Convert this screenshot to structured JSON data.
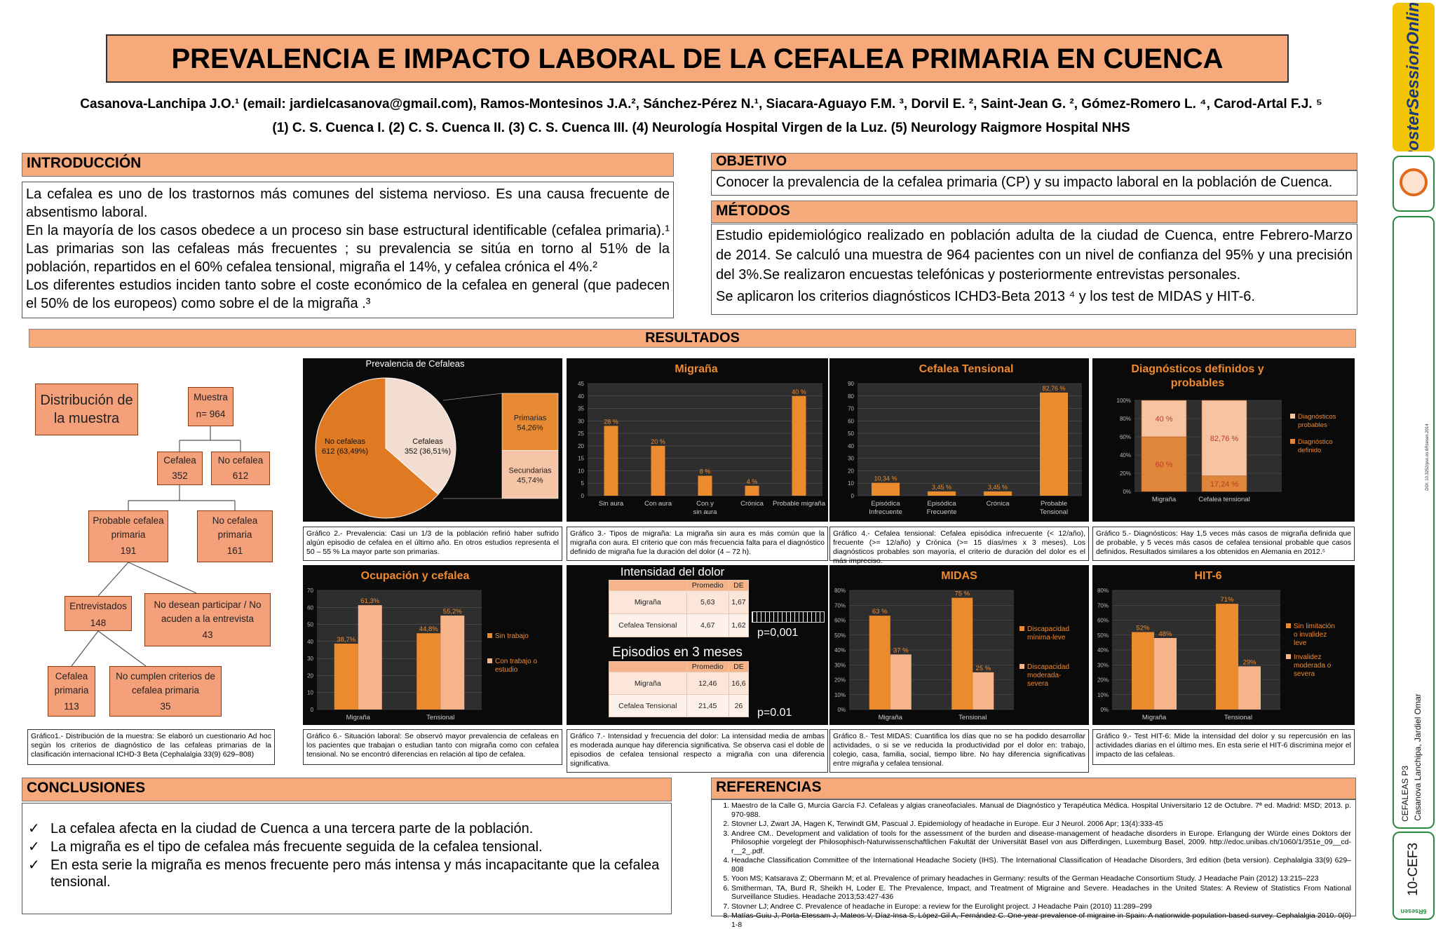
{
  "title": "PREVALENCIA E IMPACTO LABORAL DE LA CEFALEA PRIMARIA EN CUENCA",
  "authors": "Casanova-Lanchipa J.O.¹ (email: jardielcasanova@gmail.com), Ramos-Montesinos J.A.², Sánchez-Pérez N.¹, Siacara-Aguayo F.M. ³, Dorvil E. ², Saint-Jean G. ², Gómez-Romero L. ⁴, Carod-Artal F.J. ⁵",
  "affiliations": "(1) C. S. Cuenca I. (2) C. S. Cuenca II. (3) C. S. Cuenca III. (4) Neurología Hospital Virgen de la Luz.  (5)  Neurology Raigmore Hospital NHS",
  "intro": {
    "heading": "INTRODUCCIÓN",
    "p1": "La cefalea es uno de los trastornos más comunes del sistema nervioso. Es una causa frecuente de absentismo laboral.",
    "p2": "En la mayoría de los casos obedece a un proceso sin base estructural identificable (cefalea primaria).¹ Las primarias son las  cefaleas más frecuentes ; su prevalencia se sitúa en  torno al 51% de la población, repartidos en  el 60%  cefalea tensional, migraña el 14%, y cefalea crónica el 4%.²",
    "p3": "Los  diferentes estudios inciden tanto  sobre el coste económico de la cefalea en general (que padecen el 50% de los europeos)  como sobre el de la migraña .³"
  },
  "objetivo": {
    "heading": "OBJETIVO",
    "text": "Conocer la prevalencia de la cefalea primaria (CP) y su impacto laboral en la población de Cuenca."
  },
  "metodos": {
    "heading": "MÉTODOS",
    "p1": "Estudio epidemiológico realizado en población adulta de la ciudad de Cuenca, entre Febrero-Marzo de 2014. Se calculó una muestra de 964 pacientes con un nivel de confianza del 95% y una precisión del 3%.Se realizaron encuestas telefónicas y posteriormente entrevistas personales.",
    "p2": "Se aplicaron los criterios diagnósticos ICHD3-Beta 2013 ⁴ y los test de MIDAS y HIT-6."
  },
  "resultados": {
    "heading": "RESULTADOS"
  },
  "tree": {
    "title": "Distribución de la muestra",
    "nodes": {
      "muestra": [
        "Muestra",
        "n= 964"
      ],
      "cefalea": [
        "Cefalea",
        "352"
      ],
      "nocefalea": [
        "No cefalea",
        "612"
      ],
      "probable": [
        "Probable cefalea",
        "primaria",
        "191"
      ],
      "noprimaria": [
        "No cefalea",
        "primaria",
        "161"
      ],
      "entrevistados": [
        "Entrevistados",
        "148"
      ],
      "nodesean": [
        "No desean participar / No",
        "acuden a la entrevista",
        "43"
      ],
      "cefaleaprimaria": [
        "Cefalea",
        "primaria",
        "113"
      ],
      "nocumplen": [
        "No cumplen criterios de",
        "cefalea primaria",
        "35"
      ]
    },
    "caption": "Gráfico1.- Distribución de la muestra: Se elaboró un cuestionario Ad hoc según los criterios de diagnóstico de las cefaleas primarias de la clasificación internacional ICHD-3 Beta (Cephalalgia 33(9) 629–808)"
  },
  "chart_data": [
    {
      "type": "pie",
      "title": "Prevalencia de Cefaleas",
      "slices": [
        {
          "label": "No cefaleas",
          "value_label": "612 (63,49%)",
          "value": 63.49,
          "color": "#e07a22"
        },
        {
          "label": "Cefaleas",
          "value_label": "352 (36,51%)",
          "value": 36.51,
          "color": "#f3dcd0"
        }
      ],
      "stack": [
        {
          "label": "Primarias",
          "value_label": "54,26%",
          "value": 54.26,
          "color": "#e88a34"
        },
        {
          "label": "Secundarias",
          "value_label": "45,74%",
          "value": 45.74,
          "color": "#f6c4a6"
        }
      ]
    },
    {
      "type": "bar",
      "title": "Migraña",
      "categories": [
        "Sin aura",
        "Con aura",
        "Con y sin aura",
        "Crónica",
        "Probable migraña"
      ],
      "values": [
        28,
        20,
        8,
        4,
        40
      ],
      "labels": [
        "28 %",
        "20 %",
        "8 %",
        "4 %",
        "40 %"
      ],
      "ylim": [
        0,
        45
      ],
      "yticks": [
        0,
        5,
        10,
        15,
        20,
        25,
        30,
        35,
        40,
        45
      ]
    },
    {
      "type": "bar",
      "title": "Cefalea Tensional",
      "categories": [
        "Episódica Infrecuente",
        "Episódica Frecuente",
        "Crónica",
        "Probable Tensional"
      ],
      "values": [
        10.34,
        3.45,
        3.45,
        82.76
      ],
      "labels": [
        "10,34 %",
        "3,45 %",
        "3,45 %",
        "82,76 %"
      ],
      "ylim": [
        0,
        90
      ],
      "yticks": [
        0,
        10,
        20,
        30,
        40,
        50,
        60,
        70,
        80,
        90
      ]
    },
    {
      "type": "bar",
      "stacked": true,
      "title": "Diagnósticos definidos y probables",
      "categories": [
        "Migraña",
        "Cefalea tensional"
      ],
      "series": [
        {
          "name": "Diagnóstico definido",
          "values": [
            60,
            17.24
          ],
          "labels": [
            "60 %",
            "17,24 %"
          ],
          "color": "#e0863a"
        },
        {
          "name": "Diagnósticos probables",
          "values": [
            40,
            82.76
          ],
          "labels": [
            "40 %",
            "82,76 %"
          ],
          "color": "#f6c3a3"
        }
      ],
      "ylim": [
        0,
        100
      ],
      "yticks": [
        "0%",
        "20%",
        "40%",
        "60%",
        "80%",
        "100%"
      ]
    },
    {
      "type": "bar",
      "title": "Ocupación y cefalea",
      "categories": [
        "Migraña",
        "Tensional"
      ],
      "series": [
        {
          "name": "Sin trabajo",
          "values": [
            38.7,
            44.8
          ],
          "labels": [
            "38,7%",
            "44,8%"
          ],
          "color": "#ec8a2e"
        },
        {
          "name": "Con trabajo o estudio",
          "values": [
            61.3,
            55.2
          ],
          "labels": [
            "61,3%",
            "55,2%"
          ],
          "color": "#f6b48a"
        }
      ],
      "ylim": [
        0,
        70
      ],
      "yticks": [
        0,
        10,
        20,
        30,
        40,
        50,
        60,
        70
      ]
    },
    {
      "type": "table",
      "title": "Intensidad del dolor",
      "columns": [
        "",
        "Promedio",
        "DE"
      ],
      "rows": [
        [
          "Migraña",
          "5,63",
          "1,67"
        ],
        [
          "Cefalea Tensional",
          "4,67",
          "1,62"
        ]
      ],
      "pvalue": "p=0,001"
    },
    {
      "type": "table",
      "title": "Episodios en 3 meses",
      "columns": [
        "",
        "Promedio",
        "DE"
      ],
      "rows": [
        [
          "Migraña",
          "12,46",
          "16,6"
        ],
        [
          "Cefalea Tensional",
          "21,45",
          "26"
        ]
      ],
      "pvalue": "p=0.01"
    },
    {
      "type": "bar",
      "title": "MIDAS",
      "categories": [
        "Migraña",
        "Tensional"
      ],
      "series": [
        {
          "name": "Discapacidad mínima-leve",
          "values": [
            63,
            75
          ],
          "labels": [
            "63 %",
            "75 %"
          ],
          "color": "#ec8a2e"
        },
        {
          "name": "Discapacidad moderada-severa",
          "values": [
            37,
            25
          ],
          "labels": [
            "37 %",
            "25 %"
          ],
          "color": "#f6b48a"
        }
      ],
      "ylim": [
        0,
        80
      ],
      "yticks": [
        "0%",
        "10%",
        "20%",
        "30%",
        "40%",
        "50%",
        "60%",
        "70%",
        "80%"
      ]
    },
    {
      "type": "bar",
      "title": "HIT-6",
      "categories": [
        "Migraña",
        "Tensional"
      ],
      "series": [
        {
          "name": "Sin limitación o invalidez leve",
          "values": [
            52,
            71
          ],
          "labels": [
            "52%",
            "71%"
          ],
          "color": "#ec8a2e"
        },
        {
          "name": "Invalidez moderada o severa",
          "values": [
            48,
            29
          ],
          "labels": [
            "48%",
            "29%"
          ],
          "color": "#f6b48a"
        }
      ],
      "ylim": [
        0,
        80
      ],
      "yticks": [
        "0%",
        "10%",
        "20%",
        "30%",
        "40%",
        "50%",
        "60%",
        "70%",
        "80%"
      ]
    }
  ],
  "captions": {
    "g2": "Gráfico 2.- Prevalencia: Casi un  1/3 de la población refirió haber sufrido algún episodio de cefalea en  el último año. En otros estudios representa el 50 – 55 % La mayor parte son primarias.",
    "g3": "Gráfico 3.- Tipos de migraña: La migraña sin aura es más común que la migraña con aura. El criterio que con más frecuencia falta para el diagnóstico definido de migraña fue la duración del dolor (4 – 72 h).",
    "g4": "Gráfico 4.- Cefalea tensional: Cefalea episódica infrecuente (< 12/año), frecuente (>= 12/año) y Crónica (>= 15 días/mes x 3 meses). Los diagnósticos probables son mayoría, el criterio de duración del dolor es el más impreciso.",
    "g5": "Gráfico 5.- Diagnósticos: Hay 1,5 veces más casos de migraña definida que de probable, y 5 veces más casos de cefalea tensional probable que casos definidos. Resultados similares a los obtenidos en Alemania en 2012.⁵",
    "g6": "Gráfico 6.- Situación laboral: Se observó mayor prevalencia de cefaleas en los pacientes que trabajan o estudian tanto con migraña como con cefalea tensional. No se encontró diferencias en relación al tipo de cefalea.",
    "g7": "Gráfico 7.- Intensidad y frecuencia del dolor: La intensidad media de ambas es moderada aunque hay diferencia significativa. Se observa casi el doble de episodios de cefalea tensional respecto a migraña con una diferencia significativa.",
    "g8": "Gráfico 8.- Test MIDAS: Cuantifica los días que no se ha podido desarrollar actividades, o si se ve reducida la productividad por el dolor en: trabajo, colegio, casa, familia, social, tiempo libre. No hay diferencia significativas entre migraña y cefalea tensional.",
    "g9": "Gráfico 9.- Test HIT-6: Mide la intensidad del dolor y su repercusión en las actividades diarias en el último mes. En esta serie el HIT-6 discrimina mejor el impacto de las cefaleas."
  },
  "conclusiones": {
    "heading": "CONCLUSIONES",
    "items": [
      "La cefalea afecta en la ciudad de Cuenca a una tercera parte de la población.",
      "La migraña es el tipo de cefalea más frecuente seguida de la cefalea tensional.",
      "En esta serie la migraña es menos frecuente pero más intensa y más incapacitante que la cefalea  tensional."
    ]
  },
  "referencias": {
    "heading": "REFERENCIAS",
    "items": [
      "Maestro de la Calle G, Murcia García FJ. Cefaleas y algias craneofaciales. Manual de Diagnóstico y Terapéutica Médica. Hospital Universitario 12 de Octubre. 7ª ed. Madrid: MSD; 2013. p. 970-988.",
      "Stovner LJ, Zwart JA, Hagen K, Terwindt GM, Pascual J. Epidemiology of headache in Europe. Eur J Neurol. 2006 Apr; 13(4):333-45",
      "Andree CM.. Development and validation of tools for the assessment of the burden and disease-management of headache disorders in Europe. Erlangung der Würde eines Doktors der Philosophie vorgelegt der Philosophisch-Naturwissenschaftlichen Fakultät der Universität Basel von aus Differdingen, Luxemburg Basel, 2009. http://edoc.unibas.ch/1060/1/351e_09__cd-r__2_.pdf.",
      "Headache Classification Committee of the International Headache Society (IHS). The International Classification of Headache Disorders, 3rd edition (beta version). Cephalalgia 33(9) 629–808",
      "Yoon MS; Katsarava Z; Obermann M; et al. Prevalence of primary headaches in Germany: results of the German Headache Consortium Study. J Headache Pain (2012) 13:215–223",
      "Smitherman, TA,  Burd R, Sheikh H,  Loder E. The Prevalence, Impact, and Treatment of Migraine and Severe. Headaches in the United States: A Review of Statistics From National Surveillance Studies. Headache 2013;53:427-436",
      "Stovner LJ; Andree C. Prevalence of headache in Europe: a review for the Eurolight project. J Headache Pain (2010) 11:289–299",
      "Matías-Guiu J, Porta-Etessam J, Mateos V, Díaz-Insa S, López-Gil A, Fernández C. One-year prevalence of migraine in Spain: A nationwide population-based survey. Cephalalgia 2010. 0(0) 1-8"
    ]
  },
  "sidebar": {
    "brand": "PosterSessionOnline",
    "doi": "DOI: 10.3252/pso.es.6Rsesen.2014",
    "poster_code": "CEFALEAS P3",
    "author": "Casanova Lanchipa, Jardiel Omar",
    "code": "10-CEF3",
    "footer": "6Rsesen"
  }
}
